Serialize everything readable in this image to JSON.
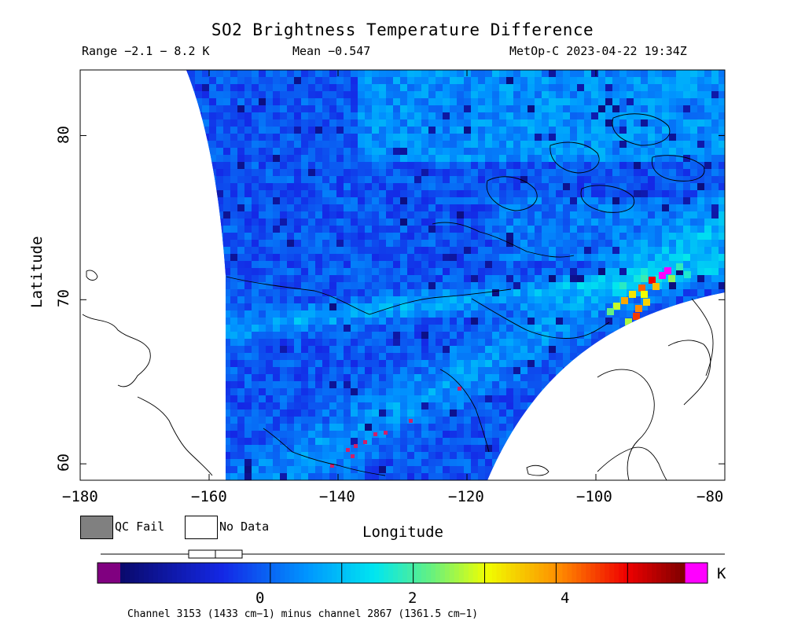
{
  "title": "SO2 Brightness Temperature Difference",
  "subtitle": {
    "range": "Range −2.1 − 8.2 K",
    "mean": "Mean −0.547",
    "source": "MetOp-C 2023-04-22 19:34Z"
  },
  "chart_data": {
    "type": "heatmap",
    "title": "SO2 Brightness Temperature Difference",
    "xlabel": "Longitude",
    "ylabel": "Latitude",
    "xlim": [
      -180,
      -80
    ],
    "ylim": [
      59,
      84
    ],
    "x_ticks": [
      "−180",
      "−160",
      "−140",
      "−120",
      "−100",
      "−80"
    ],
    "y_ticks": [
      "60",
      "70",
      "80"
    ],
    "x_tick_values": [
      -180,
      -160,
      -140,
      -120,
      -100,
      -80
    ],
    "y_tick_values": [
      60,
      70,
      80
    ],
    "value_range_K": [
      -2.1,
      8.2
    ],
    "mean_K": -0.547,
    "colorbar": {
      "unit": "K",
      "tick_labels": [
        "0",
        "2",
        "4"
      ],
      "tick_values": [
        0,
        2,
        4
      ],
      "min": -2.1,
      "max": 5.8
    },
    "colors": {
      "low": "#1a1ab8",
      "mid": "#00c8ff",
      "high": "#ff0000",
      "outlier_low": "#800080",
      "outlier_high": "#ff00ff"
    }
  },
  "legend": {
    "qc_fail": "QC Fail",
    "no_data": "No Data",
    "qc_fail_color": "#808080"
  },
  "footer": "Channel 3153 (1433 cm−1) minus channel 2867 (1361.5 cm−1)"
}
